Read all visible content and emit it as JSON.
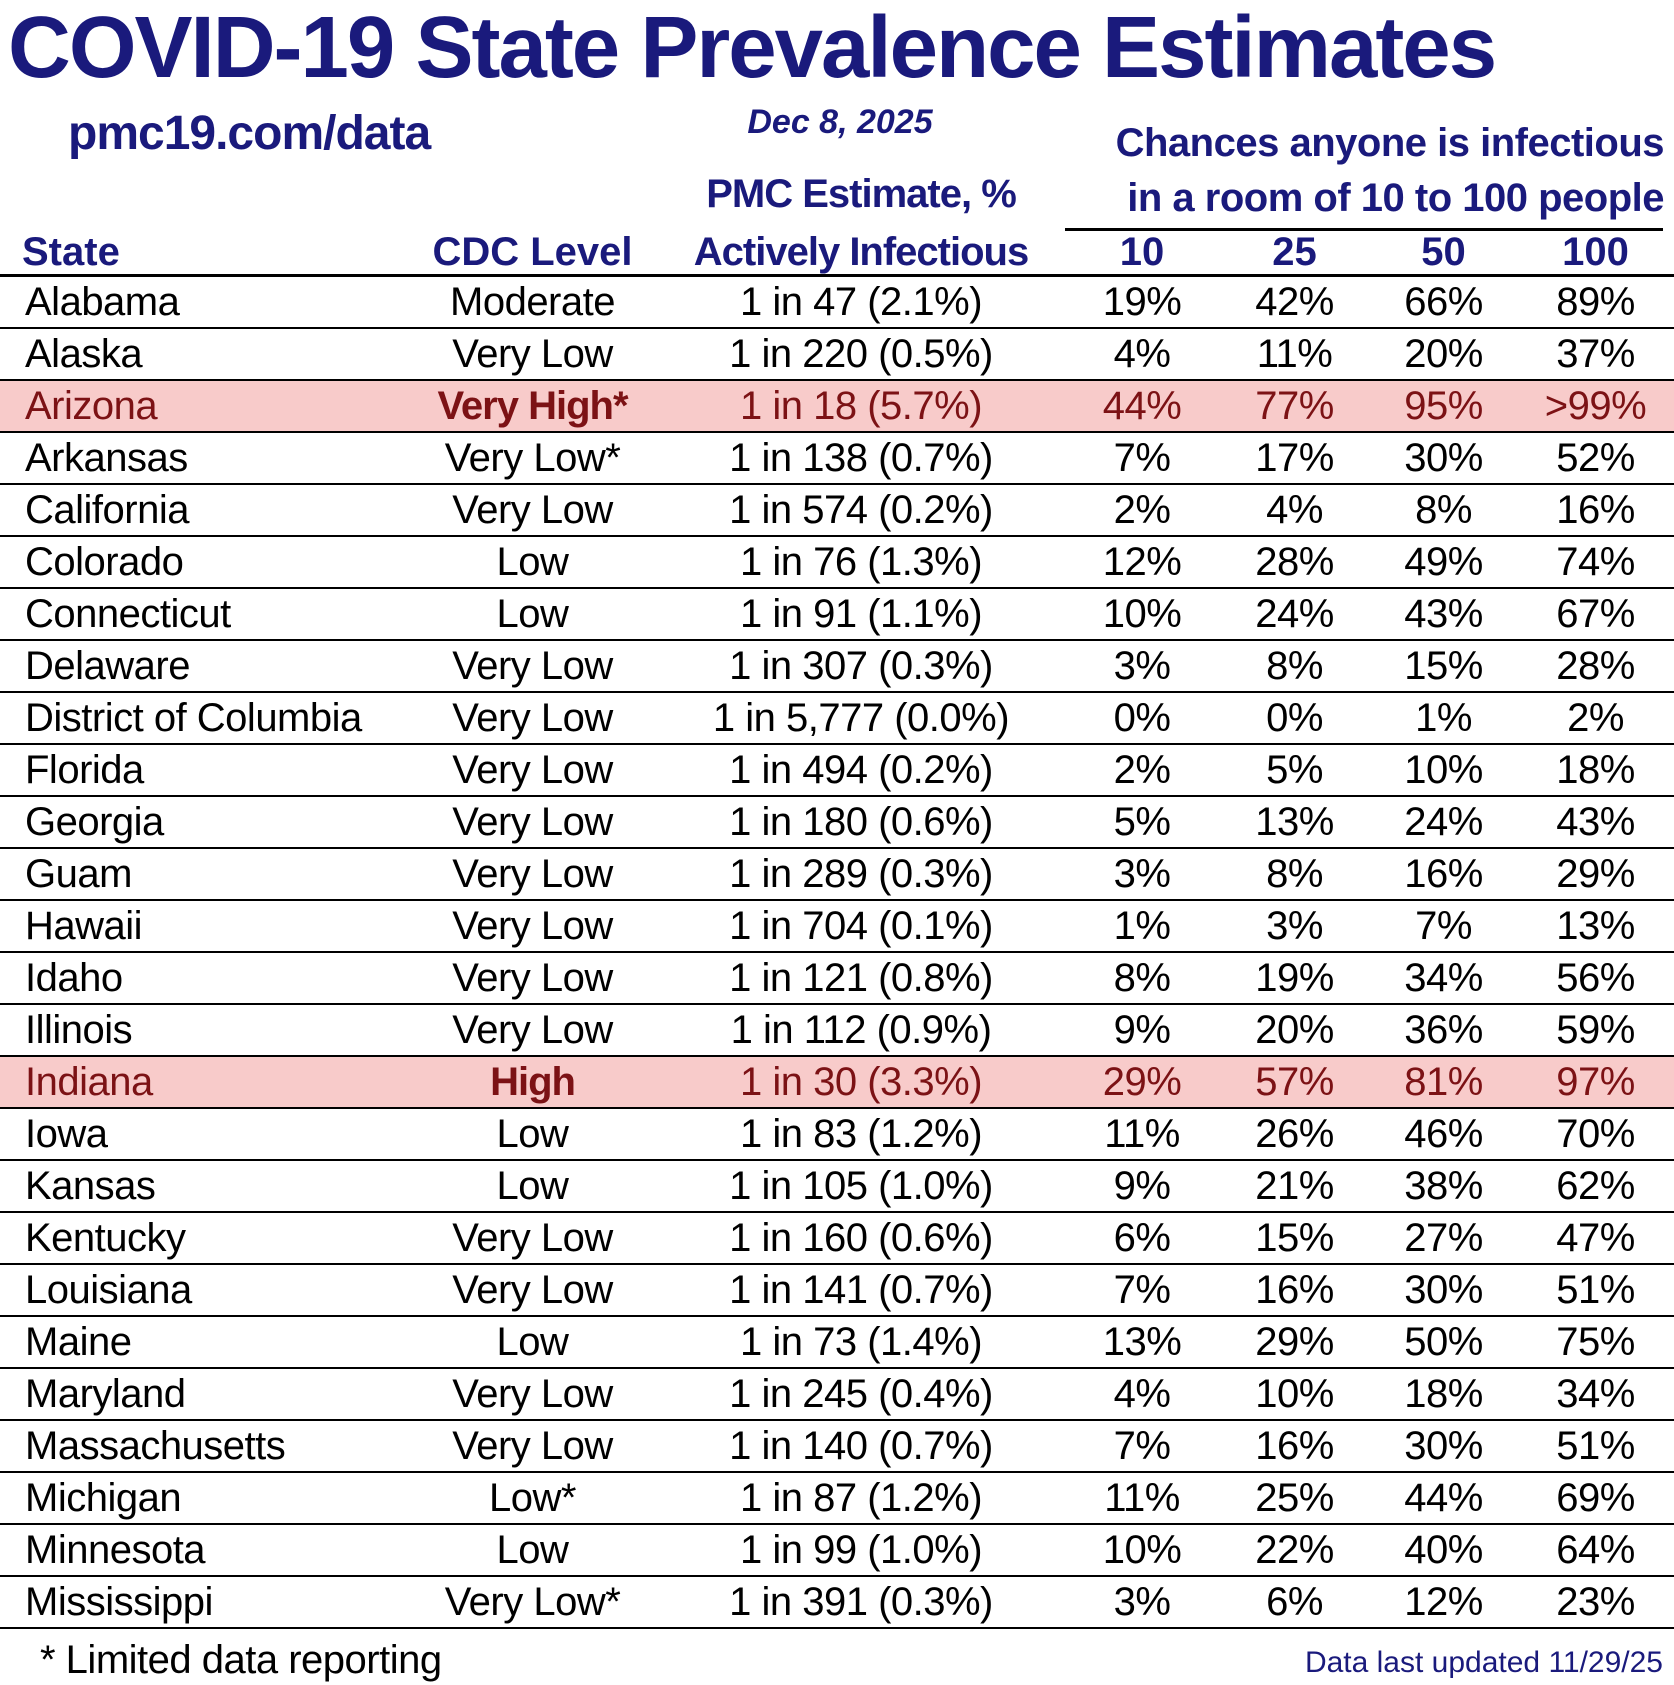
{
  "title": "COVID-19 State Prevalence Estimates",
  "site_url": "pmc19.com/data",
  "date": "Dec 8, 2025",
  "right_header": {
    "line1": "Chances anyone is infectious",
    "line2": "in a room of 10 to 100 people"
  },
  "pmc_header": {
    "line1": "PMC Estimate, %",
    "line2": "Actively Infectious"
  },
  "columns": {
    "state": "State",
    "cdc": "CDC Level",
    "sizes": [
      "10",
      "25",
      "50",
      "100"
    ]
  },
  "footnote": "* Limited data reporting",
  "updated": "Data last updated 11/29/25",
  "colors": {
    "navy": "#1a1a7c",
    "maroon": "#7c1215",
    "highlight_pink": "#f8cbca",
    "line": "#000000"
  },
  "chart_data": {
    "type": "table",
    "fields": [
      "state",
      "cdc",
      "pmc",
      "p10",
      "p25",
      "p50",
      "p100"
    ],
    "column_labels": [
      "State",
      "CDC Level",
      "PMC Estimate, % Actively Infectious",
      "10",
      "25",
      "50",
      "100"
    ],
    "rows": [
      {
        "state": "Alabama",
        "cdc": "Moderate",
        "pmc": "1 in 47 (2.1%)",
        "p10": "19%",
        "p25": "42%",
        "p50": "66%",
        "p100": "89%",
        "highlight": false
      },
      {
        "state": "Alaska",
        "cdc": "Very Low",
        "pmc": "1 in 220 (0.5%)",
        "p10": "4%",
        "p25": "11%",
        "p50": "20%",
        "p100": "37%",
        "highlight": false
      },
      {
        "state": "Arizona",
        "cdc": "Very High*",
        "pmc": "1 in 18 (5.7%)",
        "p10": "44%",
        "p25": "77%",
        "p50": "95%",
        "p100": ">99%",
        "highlight": true
      },
      {
        "state": "Arkansas",
        "cdc": "Very Low*",
        "pmc": "1 in 138 (0.7%)",
        "p10": "7%",
        "p25": "17%",
        "p50": "30%",
        "p100": "52%",
        "highlight": false
      },
      {
        "state": "California",
        "cdc": "Very Low",
        "pmc": "1 in 574 (0.2%)",
        "p10": "2%",
        "p25": "4%",
        "p50": "8%",
        "p100": "16%",
        "highlight": false
      },
      {
        "state": "Colorado",
        "cdc": "Low",
        "pmc": "1 in 76 (1.3%)",
        "p10": "12%",
        "p25": "28%",
        "p50": "49%",
        "p100": "74%",
        "highlight": false
      },
      {
        "state": "Connecticut",
        "cdc": "Low",
        "pmc": "1 in 91 (1.1%)",
        "p10": "10%",
        "p25": "24%",
        "p50": "43%",
        "p100": "67%",
        "highlight": false
      },
      {
        "state": "Delaware",
        "cdc": "Very Low",
        "pmc": "1 in 307 (0.3%)",
        "p10": "3%",
        "p25": "8%",
        "p50": "15%",
        "p100": "28%",
        "highlight": false
      },
      {
        "state": "District of Columbia",
        "cdc": "Very Low",
        "pmc": "1 in 5,777 (0.0%)",
        "p10": "0%",
        "p25": "0%",
        "p50": "1%",
        "p100": "2%",
        "highlight": false
      },
      {
        "state": "Florida",
        "cdc": "Very Low",
        "pmc": "1 in 494 (0.2%)",
        "p10": "2%",
        "p25": "5%",
        "p50": "10%",
        "p100": "18%",
        "highlight": false
      },
      {
        "state": "Georgia",
        "cdc": "Very Low",
        "pmc": "1 in 180 (0.6%)",
        "p10": "5%",
        "p25": "13%",
        "p50": "24%",
        "p100": "43%",
        "highlight": false
      },
      {
        "state": "Guam",
        "cdc": "Very Low",
        "pmc": "1 in 289 (0.3%)",
        "p10": "3%",
        "p25": "8%",
        "p50": "16%",
        "p100": "29%",
        "highlight": false
      },
      {
        "state": "Hawaii",
        "cdc": "Very Low",
        "pmc": "1 in 704 (0.1%)",
        "p10": "1%",
        "p25": "3%",
        "p50": "7%",
        "p100": "13%",
        "highlight": false
      },
      {
        "state": "Idaho",
        "cdc": "Very Low",
        "pmc": "1 in 121 (0.8%)",
        "p10": "8%",
        "p25": "19%",
        "p50": "34%",
        "p100": "56%",
        "highlight": false
      },
      {
        "state": "Illinois",
        "cdc": "Very Low",
        "pmc": "1 in 112 (0.9%)",
        "p10": "9%",
        "p25": "20%",
        "p50": "36%",
        "p100": "59%",
        "highlight": false
      },
      {
        "state": "Indiana",
        "cdc": "High",
        "pmc": "1 in 30 (3.3%)",
        "p10": "29%",
        "p25": "57%",
        "p50": "81%",
        "p100": "97%",
        "highlight": true
      },
      {
        "state": "Iowa",
        "cdc": "Low",
        "pmc": "1 in 83 (1.2%)",
        "p10": "11%",
        "p25": "26%",
        "p50": "46%",
        "p100": "70%",
        "highlight": false
      },
      {
        "state": "Kansas",
        "cdc": "Low",
        "pmc": "1 in 105 (1.0%)",
        "p10": "9%",
        "p25": "21%",
        "p50": "38%",
        "p100": "62%",
        "highlight": false
      },
      {
        "state": "Kentucky",
        "cdc": "Very Low",
        "pmc": "1 in 160 (0.6%)",
        "p10": "6%",
        "p25": "15%",
        "p50": "27%",
        "p100": "47%",
        "highlight": false
      },
      {
        "state": "Louisiana",
        "cdc": "Very Low",
        "pmc": "1 in 141 (0.7%)",
        "p10": "7%",
        "p25": "16%",
        "p50": "30%",
        "p100": "51%",
        "highlight": false
      },
      {
        "state": "Maine",
        "cdc": "Low",
        "pmc": "1 in 73 (1.4%)",
        "p10": "13%",
        "p25": "29%",
        "p50": "50%",
        "p100": "75%",
        "highlight": false
      },
      {
        "state": "Maryland",
        "cdc": "Very Low",
        "pmc": "1 in 245 (0.4%)",
        "p10": "4%",
        "p25": "10%",
        "p50": "18%",
        "p100": "34%",
        "highlight": false
      },
      {
        "state": "Massachusetts",
        "cdc": "Very Low",
        "pmc": "1 in 140 (0.7%)",
        "p10": "7%",
        "p25": "16%",
        "p50": "30%",
        "p100": "51%",
        "highlight": false
      },
      {
        "state": "Michigan",
        "cdc": "Low*",
        "pmc": "1 in 87 (1.2%)",
        "p10": "11%",
        "p25": "25%",
        "p50": "44%",
        "p100": "69%",
        "highlight": false
      },
      {
        "state": "Minnesota",
        "cdc": "Low",
        "pmc": "1 in 99 (1.0%)",
        "p10": "10%",
        "p25": "22%",
        "p50": "40%",
        "p100": "64%",
        "highlight": false
      },
      {
        "state": "Mississippi",
        "cdc": "Very Low*",
        "pmc": "1 in 391 (0.3%)",
        "p10": "3%",
        "p25": "6%",
        "p50": "12%",
        "p100": "23%",
        "highlight": false
      }
    ]
  }
}
